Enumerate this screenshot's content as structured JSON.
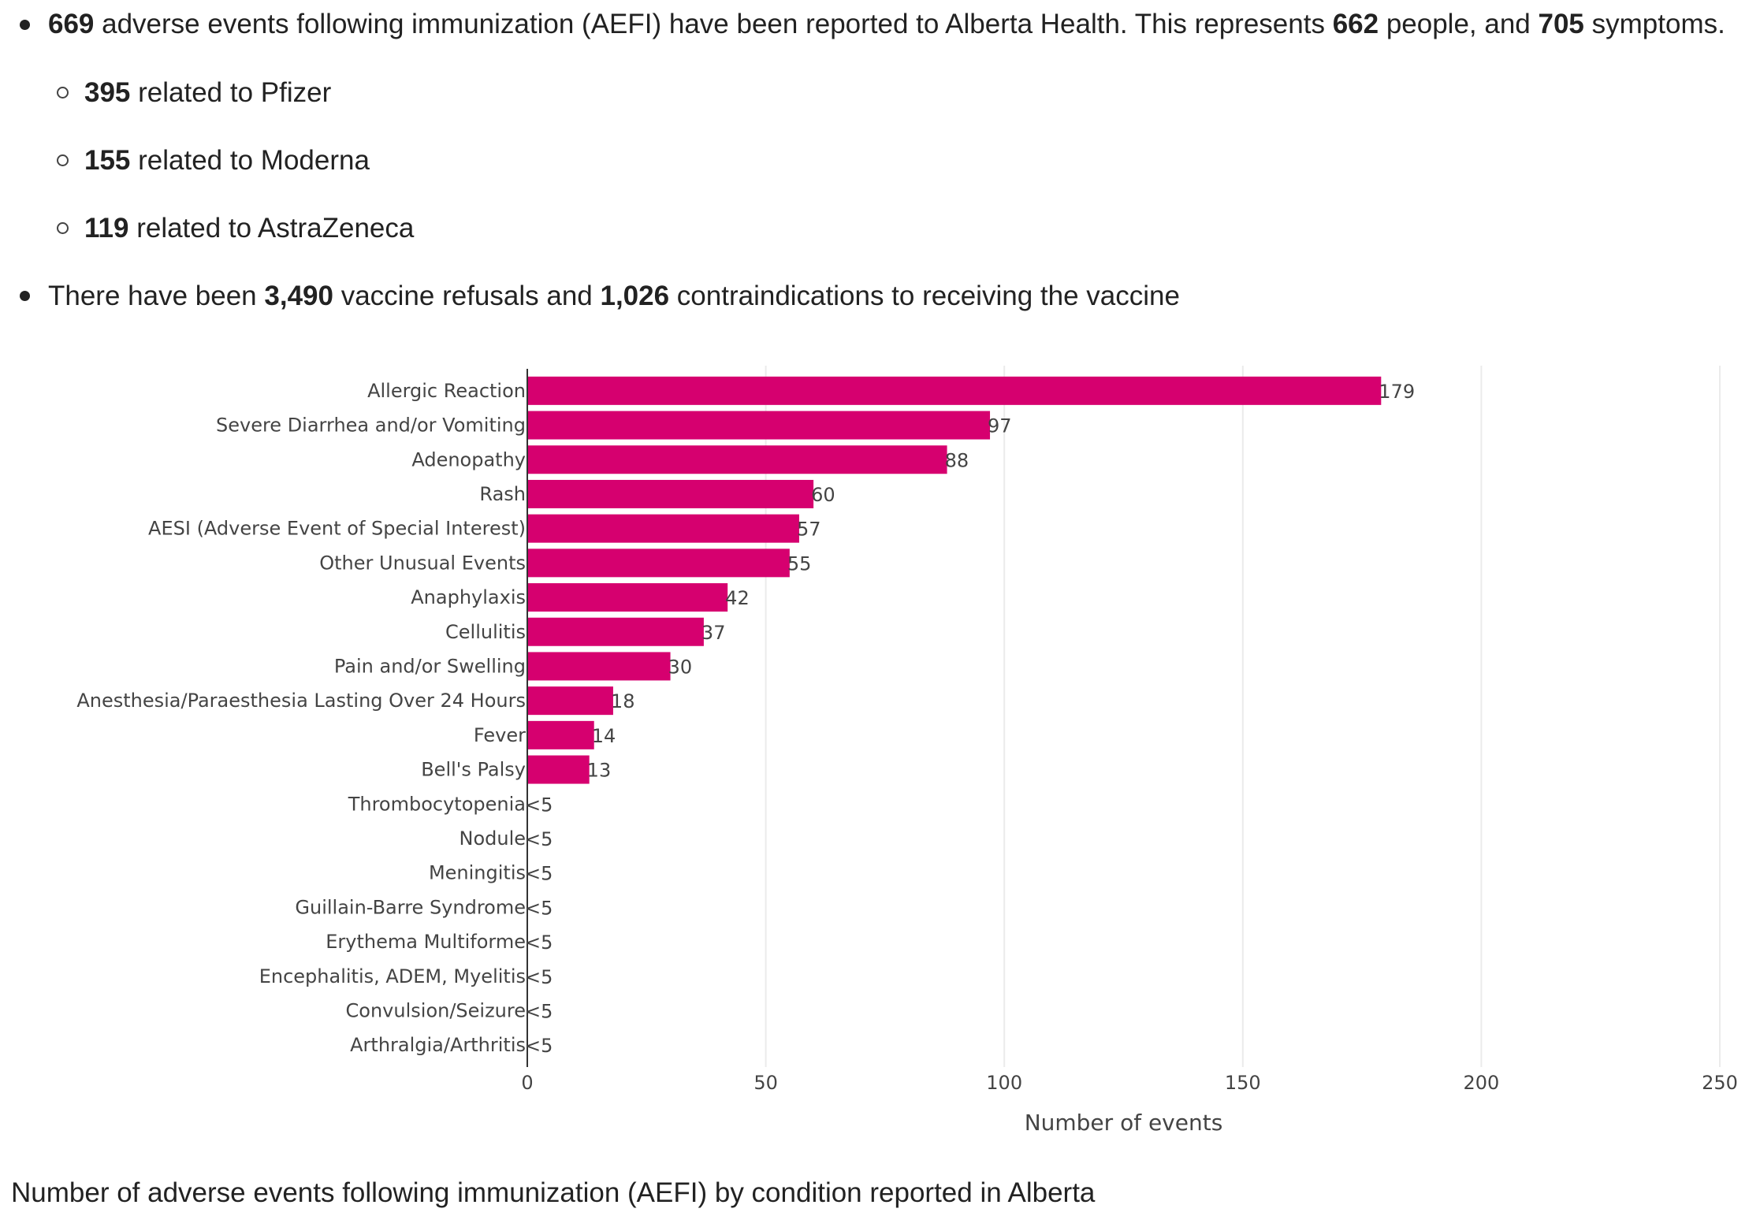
{
  "summary": {
    "line1": {
      "n1": "669",
      "t1": " adverse events following immunization (AEFI) have been reported to Alberta Health. This represents ",
      "n2": "662",
      "t2": " people, and ",
      "n3": "705",
      "t3": " symptoms."
    },
    "sub_items": [
      {
        "num": "395",
        "text": " related to Pfizer"
      },
      {
        "num": "155",
        "text": " related to Moderna"
      },
      {
        "num": "119",
        "text": " related to AstraZeneca"
      }
    ],
    "line2": {
      "t1": "There have been ",
      "n1": "3,490",
      "t2": " vaccine refusals and ",
      "n2": "1,026",
      "t3": " contraindications to receiving the vaccine"
    }
  },
  "chart_data": {
    "type": "bar",
    "orientation": "horizontal",
    "categories": [
      "Allergic Reaction",
      "Severe Diarrhea and/or Vomiting",
      "Adenopathy",
      "Rash",
      "AESI (Adverse Event of Special Interest)",
      "Other Unusual Events",
      "Anaphylaxis",
      "Cellulitis",
      "Pain and/or Swelling",
      "Anesthesia/Paraesthesia Lasting Over 24 Hours",
      "Fever",
      "Bell's Palsy",
      "Thrombocytopenia",
      "Nodule",
      "Meningitis",
      "Guillain-Barre Syndrome",
      "Erythema Multiforme",
      "Encephalitis, ADEM, Myelitis",
      "Convulsion/Seizure",
      "Arthralgia/Arthritis"
    ],
    "values": [
      179,
      97,
      88,
      60,
      57,
      55,
      42,
      37,
      30,
      18,
      14,
      13,
      0,
      0,
      0,
      0,
      0,
      0,
      0,
      0
    ],
    "value_labels": [
      "179",
      "97",
      "88",
      "60",
      "57",
      "55",
      "42",
      "37",
      "30",
      "18",
      "14",
      "13",
      "<5",
      "<5",
      "<5",
      "<5",
      "<5",
      "<5",
      "<5",
      "<5"
    ],
    "xlabel": "Number of events",
    "ylabel": "",
    "xlim": [
      0,
      250
    ],
    "xticks": [
      0,
      50,
      100,
      150,
      200,
      250
    ],
    "xtick_labels": [
      "0",
      "50",
      "100",
      "150",
      "200",
      "250"
    ],
    "grid": "vertical",
    "bar_color": "#d6006f"
  },
  "caption": "Number of adverse events following immunization (AEFI) by condition reported in Alberta"
}
